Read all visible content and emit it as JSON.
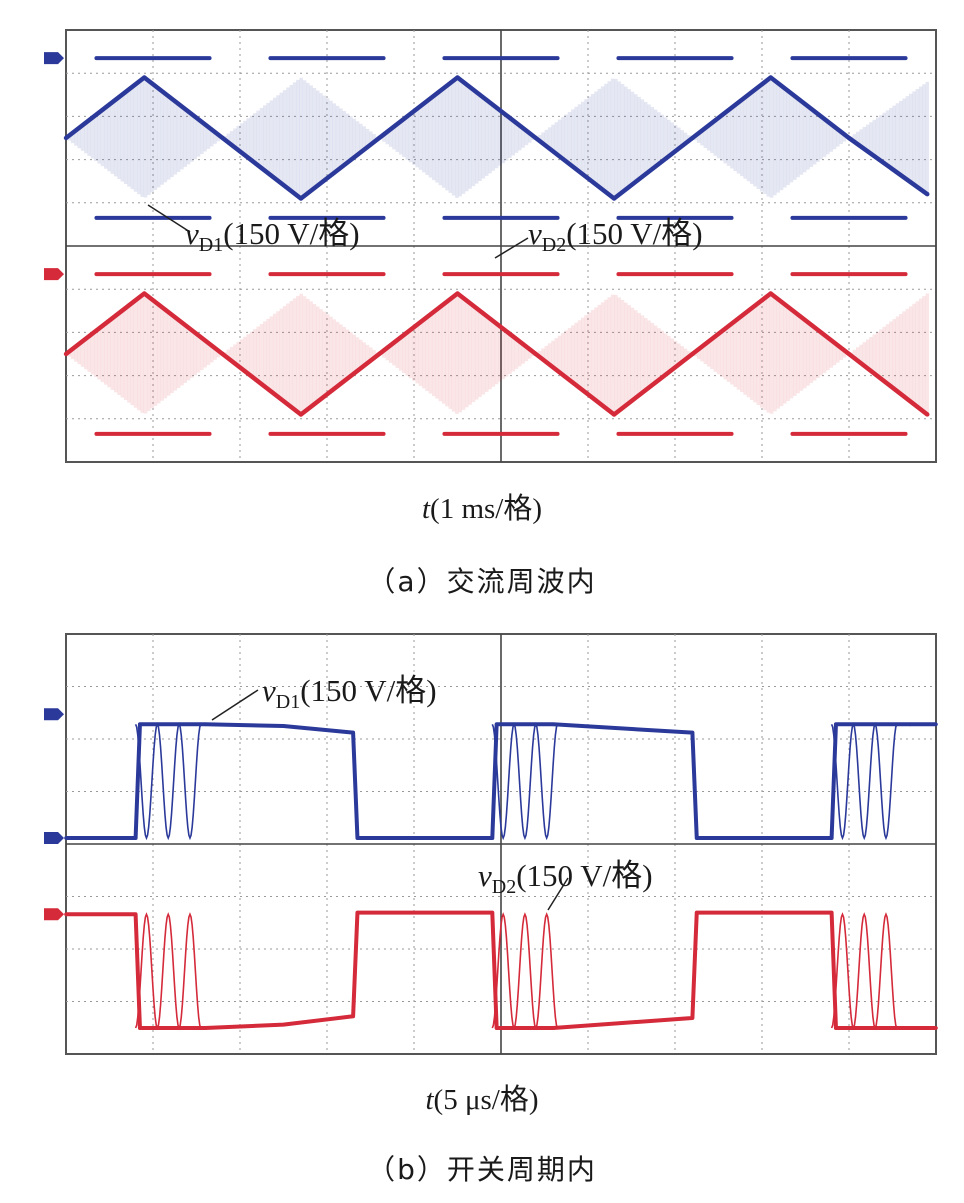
{
  "chart_data": [
    {
      "type": "line",
      "caption": "（a）交流周波内",
      "xlabel_var": "t",
      "xlabel_unit": "(1 ms/格)",
      "x_divisions": 10,
      "y_divisions": 10,
      "grid": true,
      "series": [
        {
          "name": "vD1",
          "label_var": "v",
          "label_sub": "D1",
          "label_unit": "(150 V/格)",
          "color": "#2b3a9a",
          "envelope": "rectified-sine switching envelope with triangular centerline",
          "x": [
            0.0,
            0.9,
            1.8,
            2.7,
            3.6,
            4.5,
            5.4,
            6.3,
            7.2,
            8.1,
            9.0,
            9.9
          ],
          "y": [
            2.5,
            3.9,
            2.5,
            1.1,
            2.5,
            3.9,
            2.5,
            1.1,
            2.5,
            3.9,
            2.5,
            1.2
          ]
        },
        {
          "name": "vD2",
          "label_var": "v",
          "label_sub": "D2",
          "label_unit": "(150 V/格)",
          "color": "#d42a3a",
          "envelope": "rectified-sine switching envelope with triangular centerline",
          "x": [
            0.0,
            0.9,
            1.8,
            2.7,
            3.6,
            4.5,
            5.4,
            6.3,
            7.2,
            8.1,
            9.0,
            9.9
          ],
          "y": [
            -2.5,
            -1.1,
            -2.5,
            -3.9,
            -2.5,
            -1.1,
            -2.5,
            -3.9,
            -2.5,
            -1.1,
            -2.5,
            -3.9
          ]
        }
      ]
    },
    {
      "type": "line",
      "caption": "（b）开关周期内",
      "xlabel_var": "t",
      "xlabel_unit": "(5 μs/格)",
      "x_divisions": 10,
      "y_divisions": 8,
      "grid": true,
      "series": [
        {
          "name": "vD1",
          "label_var": "v",
          "label_sub": "D1",
          "label_unit": "(150 V/格)",
          "color": "#2b3a9a",
          "x": [
            0.0,
            0.8,
            0.85,
            1.6,
            2.5,
            3.3,
            3.35,
            4.9,
            4.95,
            5.6,
            7.2,
            7.25,
            8.8,
            8.85,
            9.7,
            10.0
          ],
          "y": [
            0.0,
            0.0,
            3.4,
            3.4,
            3.35,
            3.15,
            0.0,
            0.0,
            3.4,
            3.4,
            3.15,
            0.0,
            0.0,
            3.4,
            3.4,
            3.4
          ]
        },
        {
          "name": "vD2",
          "label_var": "v",
          "label_sub": "D2",
          "label_unit": "(150 V/格)",
          "color": "#d42a3a",
          "x": [
            0.0,
            0.8,
            0.85,
            1.6,
            2.5,
            3.3,
            3.35,
            4.9,
            4.95,
            5.6,
            7.2,
            7.25,
            8.8,
            8.85,
            9.7,
            10.0
          ],
          "y": [
            3.4,
            3.4,
            0.0,
            0.0,
            0.1,
            0.35,
            3.45,
            3.45,
            0.0,
            0.0,
            0.3,
            3.45,
            3.45,
            0.0,
            0.0,
            0.0
          ]
        }
      ]
    }
  ]
}
